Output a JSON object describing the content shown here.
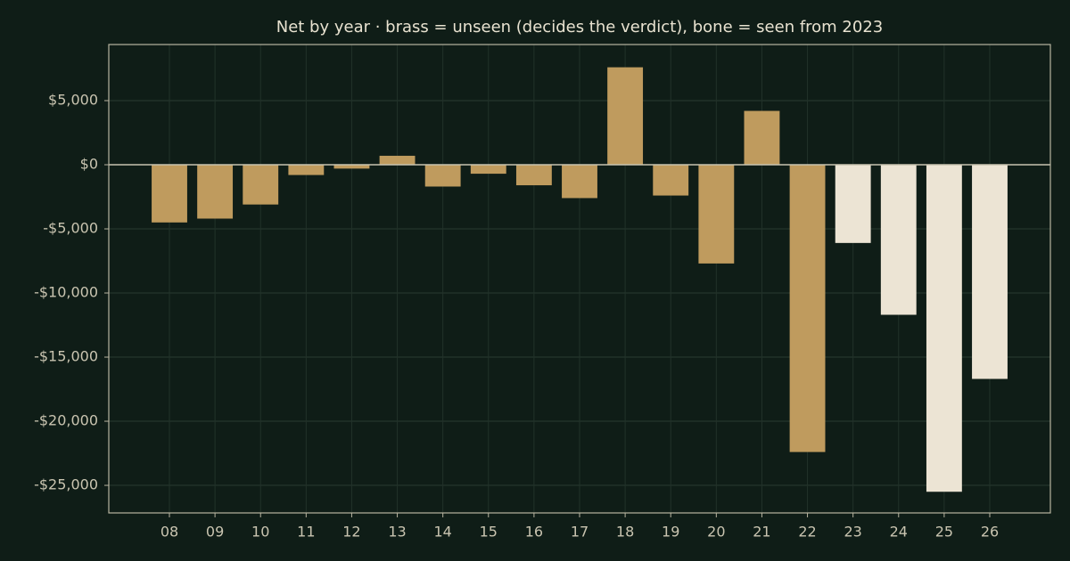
{
  "chart_data": {
    "type": "bar",
    "title": "Net by year  ·  brass = unseen (decides the verdict), bone = seen from 2023",
    "categories": [
      "08",
      "09",
      "10",
      "11",
      "12",
      "13",
      "14",
      "15",
      "16",
      "17",
      "18",
      "19",
      "20",
      "21",
      "22",
      "23",
      "24",
      "25",
      "26"
    ],
    "values": [
      -4500,
      -4200,
      -3100,
      -800,
      -300,
      700,
      -1700,
      -700,
      -1600,
      -2600,
      7600,
      -2400,
      -7700,
      4200,
      -22400,
      -6100,
      -11700,
      -25500,
      -16700
    ],
    "colors": [
      "#bf9b5e",
      "#bf9b5e",
      "#bf9b5e",
      "#bf9b5e",
      "#bf9b5e",
      "#bf9b5e",
      "#bf9b5e",
      "#bf9b5e",
      "#bf9b5e",
      "#bf9b5e",
      "#bf9b5e",
      "#bf9b5e",
      "#bf9b5e",
      "#bf9b5e",
      "#bf9b5e",
      "#ece4d4",
      "#ece4d4",
      "#ece4d4",
      "#ece4d4"
    ],
    "ylim": [
      -27150,
      9375
    ],
    "yticks": [
      {
        "value": 5000,
        "label": "$5,000"
      },
      {
        "value": 0,
        "label": "$0"
      },
      {
        "value": -5000,
        "label": "-$5,000"
      },
      {
        "value": -10000,
        "label": "-$10,000"
      },
      {
        "value": -15000,
        "label": "-$15,000"
      },
      {
        "value": -20000,
        "label": "-$20,000"
      },
      {
        "value": -25000,
        "label": "-$25,000"
      }
    ],
    "grid": true
  }
}
